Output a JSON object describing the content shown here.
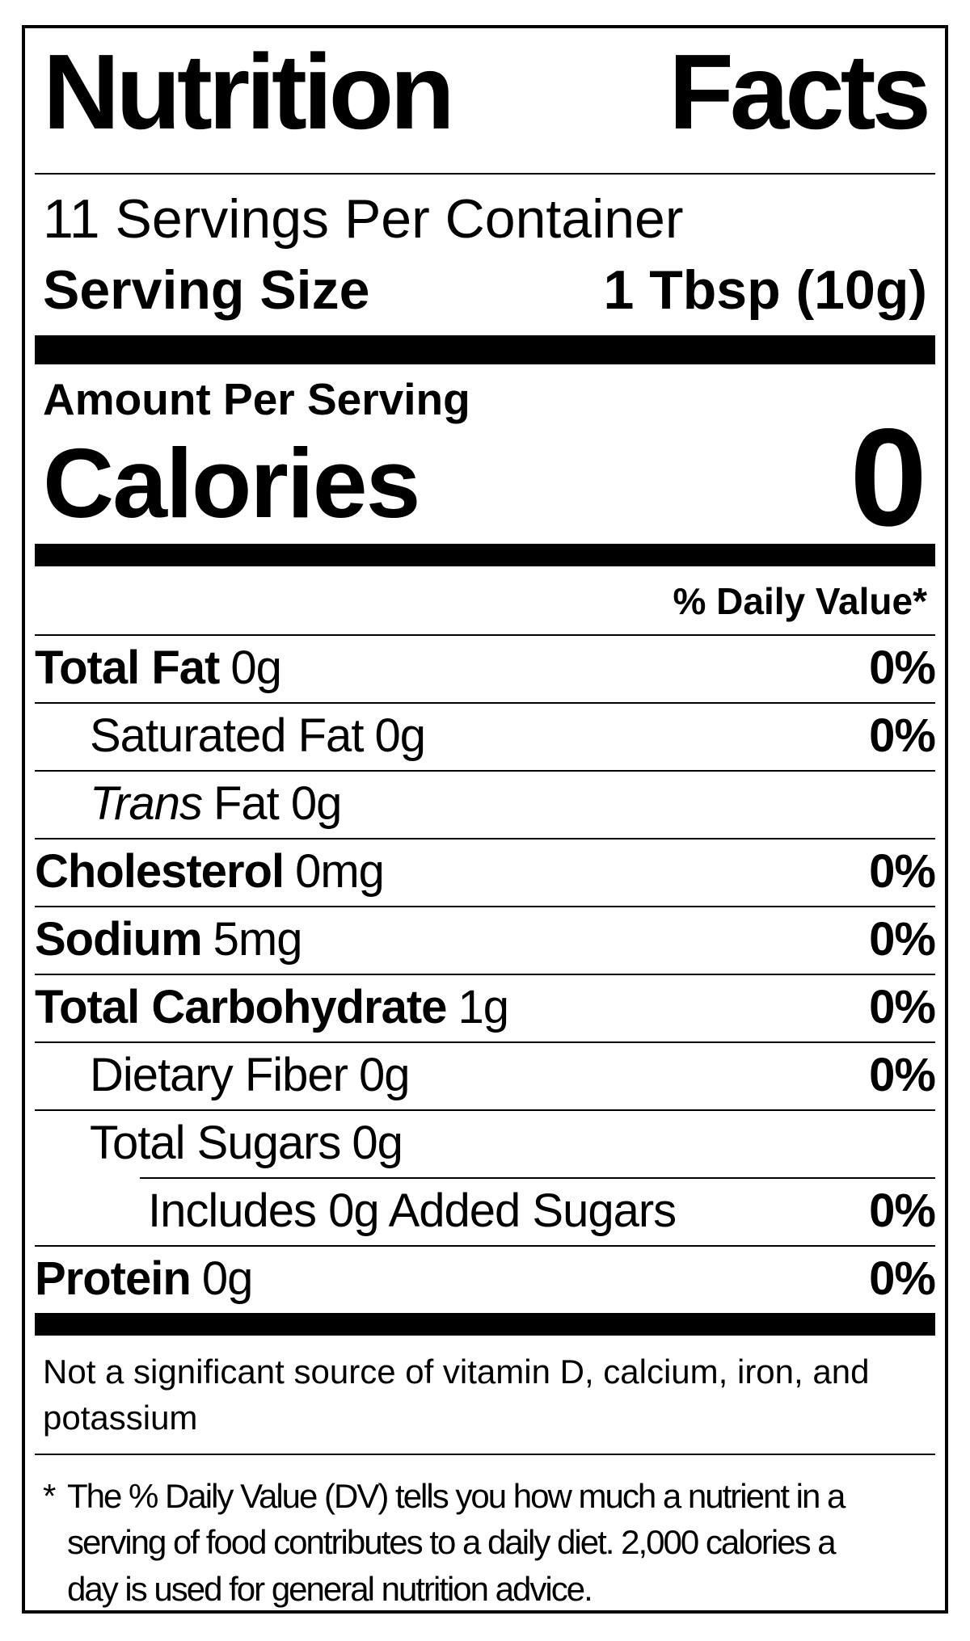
{
  "colors": {
    "text": "#000000",
    "background": "#ffffff"
  },
  "title": "Nutrition Facts",
  "servings_per_container": "11 Servings Per Container",
  "serving_size": {
    "label": "Serving Size",
    "value": "1 Tbsp (10g)"
  },
  "amount_per_serving": "Amount Per Serving",
  "calories": {
    "label": "Calories",
    "value": "0"
  },
  "daily_value_header": "% Daily Value*",
  "nutrients": [
    {
      "name": "Total Fat",
      "amount": "0g",
      "dv": "0%"
    },
    {
      "name": "Saturated Fat",
      "amount": "0g",
      "dv": "0%"
    },
    {
      "name": "Trans",
      "amount": "Fat 0g",
      "dv": ""
    },
    {
      "name": "Cholesterol",
      "amount": "0mg",
      "dv": "0%"
    },
    {
      "name": "Sodium",
      "amount": "5mg",
      "dv": "0%"
    },
    {
      "name": "Total Carbohydrate",
      "amount": "1g",
      "dv": "0%"
    },
    {
      "name": "Dietary Fiber",
      "amount": "0g",
      "dv": "0%"
    },
    {
      "name": "Total Sugars",
      "amount": "0g",
      "dv": ""
    },
    {
      "name": "Includes 0g Added Sugars",
      "amount": "",
      "dv": "0%"
    },
    {
      "name": "Protein",
      "amount": "0g",
      "dv": "0%"
    }
  ],
  "not_significant_note": "Not a significant source of vitamin D, calcium, iron, and\npotassium",
  "footnote": {
    "marker": "*",
    "text": "The % Daily Value (DV) tells you how much a nutrient in a\nserving of food contributes to a daily diet. 2,000 calories a\nday is used for general nutrition advice."
  }
}
